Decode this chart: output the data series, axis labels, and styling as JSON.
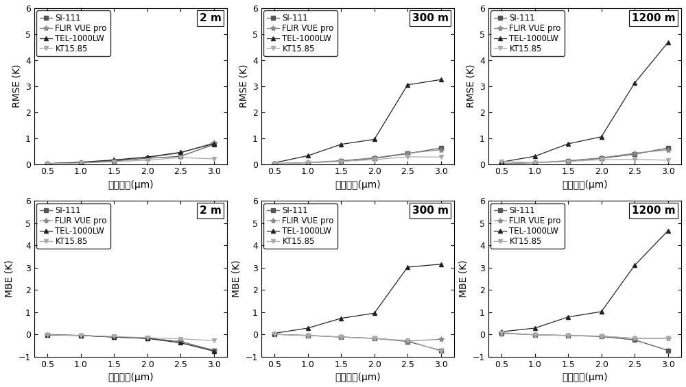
{
  "x": [
    0.5,
    1.0,
    1.5,
    2.0,
    2.5,
    3.0
  ],
  "rmse": {
    "2m": {
      "SI-111": [
        0.02,
        0.05,
        0.12,
        0.22,
        0.3,
        0.75
      ],
      "FLIR VUE pro": [
        0.02,
        0.06,
        0.14,
        0.25,
        0.43,
        0.82
      ],
      "TEL-1000LW": [
        0.02,
        0.07,
        0.16,
        0.27,
        0.45,
        0.78
      ],
      "KT15.85": [
        0.02,
        0.04,
        0.09,
        0.15,
        0.25,
        0.2
      ]
    },
    "300m": {
      "SI-111": [
        0.02,
        0.05,
        0.12,
        0.22,
        0.4,
        0.62
      ],
      "FLIR VUE pro": [
        0.02,
        0.06,
        0.13,
        0.24,
        0.42,
        0.55
      ],
      "TEL-1000LW": [
        0.05,
        0.32,
        0.76,
        0.95,
        3.05,
        3.25
      ],
      "KT15.85": [
        0.02,
        0.05,
        0.1,
        0.17,
        0.28,
        0.27
      ]
    },
    "1200m": {
      "SI-111": [
        0.02,
        0.05,
        0.12,
        0.22,
        0.38,
        0.62
      ],
      "FLIR VUE pro": [
        0.02,
        0.06,
        0.13,
        0.24,
        0.42,
        0.55
      ],
      "TEL-1000LW": [
        0.08,
        0.3,
        0.78,
        1.05,
        3.12,
        4.68
      ],
      "KT15.85": [
        0.1,
        0.05,
        0.1,
        0.17,
        0.18,
        0.15
      ]
    }
  },
  "mbe": {
    "2m": {
      "SI-111": [
        -0.02,
        -0.05,
        -0.12,
        -0.18,
        -0.32,
        -0.72
      ],
      "FLIR VUE pro": [
        -0.02,
        -0.05,
        -0.12,
        -0.18,
        -0.32,
        -0.72
      ],
      "TEL-1000LW": [
        -0.02,
        -0.05,
        -0.12,
        -0.18,
        -0.38,
        -0.75
      ],
      "KT15.85": [
        -0.02,
        -0.05,
        -0.1,
        -0.15,
        -0.2,
        -0.28
      ]
    },
    "300m": {
      "SI-111": [
        0.0,
        -0.05,
        -0.12,
        -0.18,
        -0.32,
        -0.72
      ],
      "FLIR VUE pro": [
        0.0,
        -0.05,
        -0.12,
        -0.18,
        -0.3,
        -0.22
      ],
      "TEL-1000LW": [
        0.05,
        0.28,
        0.72,
        0.95,
        3.02,
        3.15
      ],
      "KT15.85": [
        0.0,
        -0.05,
        -0.12,
        -0.18,
        -0.28,
        -0.75
      ]
    },
    "1200m": {
      "SI-111": [
        0.05,
        -0.02,
        -0.05,
        -0.1,
        -0.25,
        -0.72
      ],
      "FLIR VUE pro": [
        0.05,
        -0.02,
        -0.05,
        -0.08,
        -0.18,
        -0.18
      ],
      "TEL-1000LW": [
        0.12,
        0.28,
        0.78,
        1.02,
        3.1,
        4.65
      ],
      "KT15.85": [
        0.08,
        -0.02,
        -0.05,
        -0.08,
        -0.18,
        -0.18
      ]
    }
  },
  "distances": [
    "2m",
    "300m",
    "1200m"
  ],
  "distance_labels": [
    "2 m",
    "300 m",
    "1200 m"
  ],
  "series_names": [
    "SI-111",
    "FLIR VUE pro",
    "TEL-1000LW",
    "KT15.85"
  ],
  "series_markers": [
    "s",
    "*",
    "^",
    "v"
  ],
  "series_colors": [
    "#555555",
    "#888888",
    "#222222",
    "#aaaaaa"
  ],
  "xlabel": "波段宽度(μm)",
  "ylabel_rmse": "RMSE (K)",
  "ylabel_mbe": "MBE (K)",
  "xlim": [
    0.3,
    3.2
  ],
  "ylim_rmse": [
    0,
    6
  ],
  "ylim_mbe": [
    -1,
    6
  ],
  "yticks_rmse": [
    0,
    1,
    2,
    3,
    4,
    5,
    6
  ],
  "yticks_mbe": [
    -1,
    0,
    1,
    2,
    3,
    4,
    5,
    6
  ],
  "xticks": [
    0.5,
    1.0,
    1.5,
    2.0,
    2.5,
    3.0
  ],
  "annotation_fontsize": 11,
  "tick_fontsize": 9,
  "label_fontsize": 10,
  "legend_fontsize": 8.5
}
